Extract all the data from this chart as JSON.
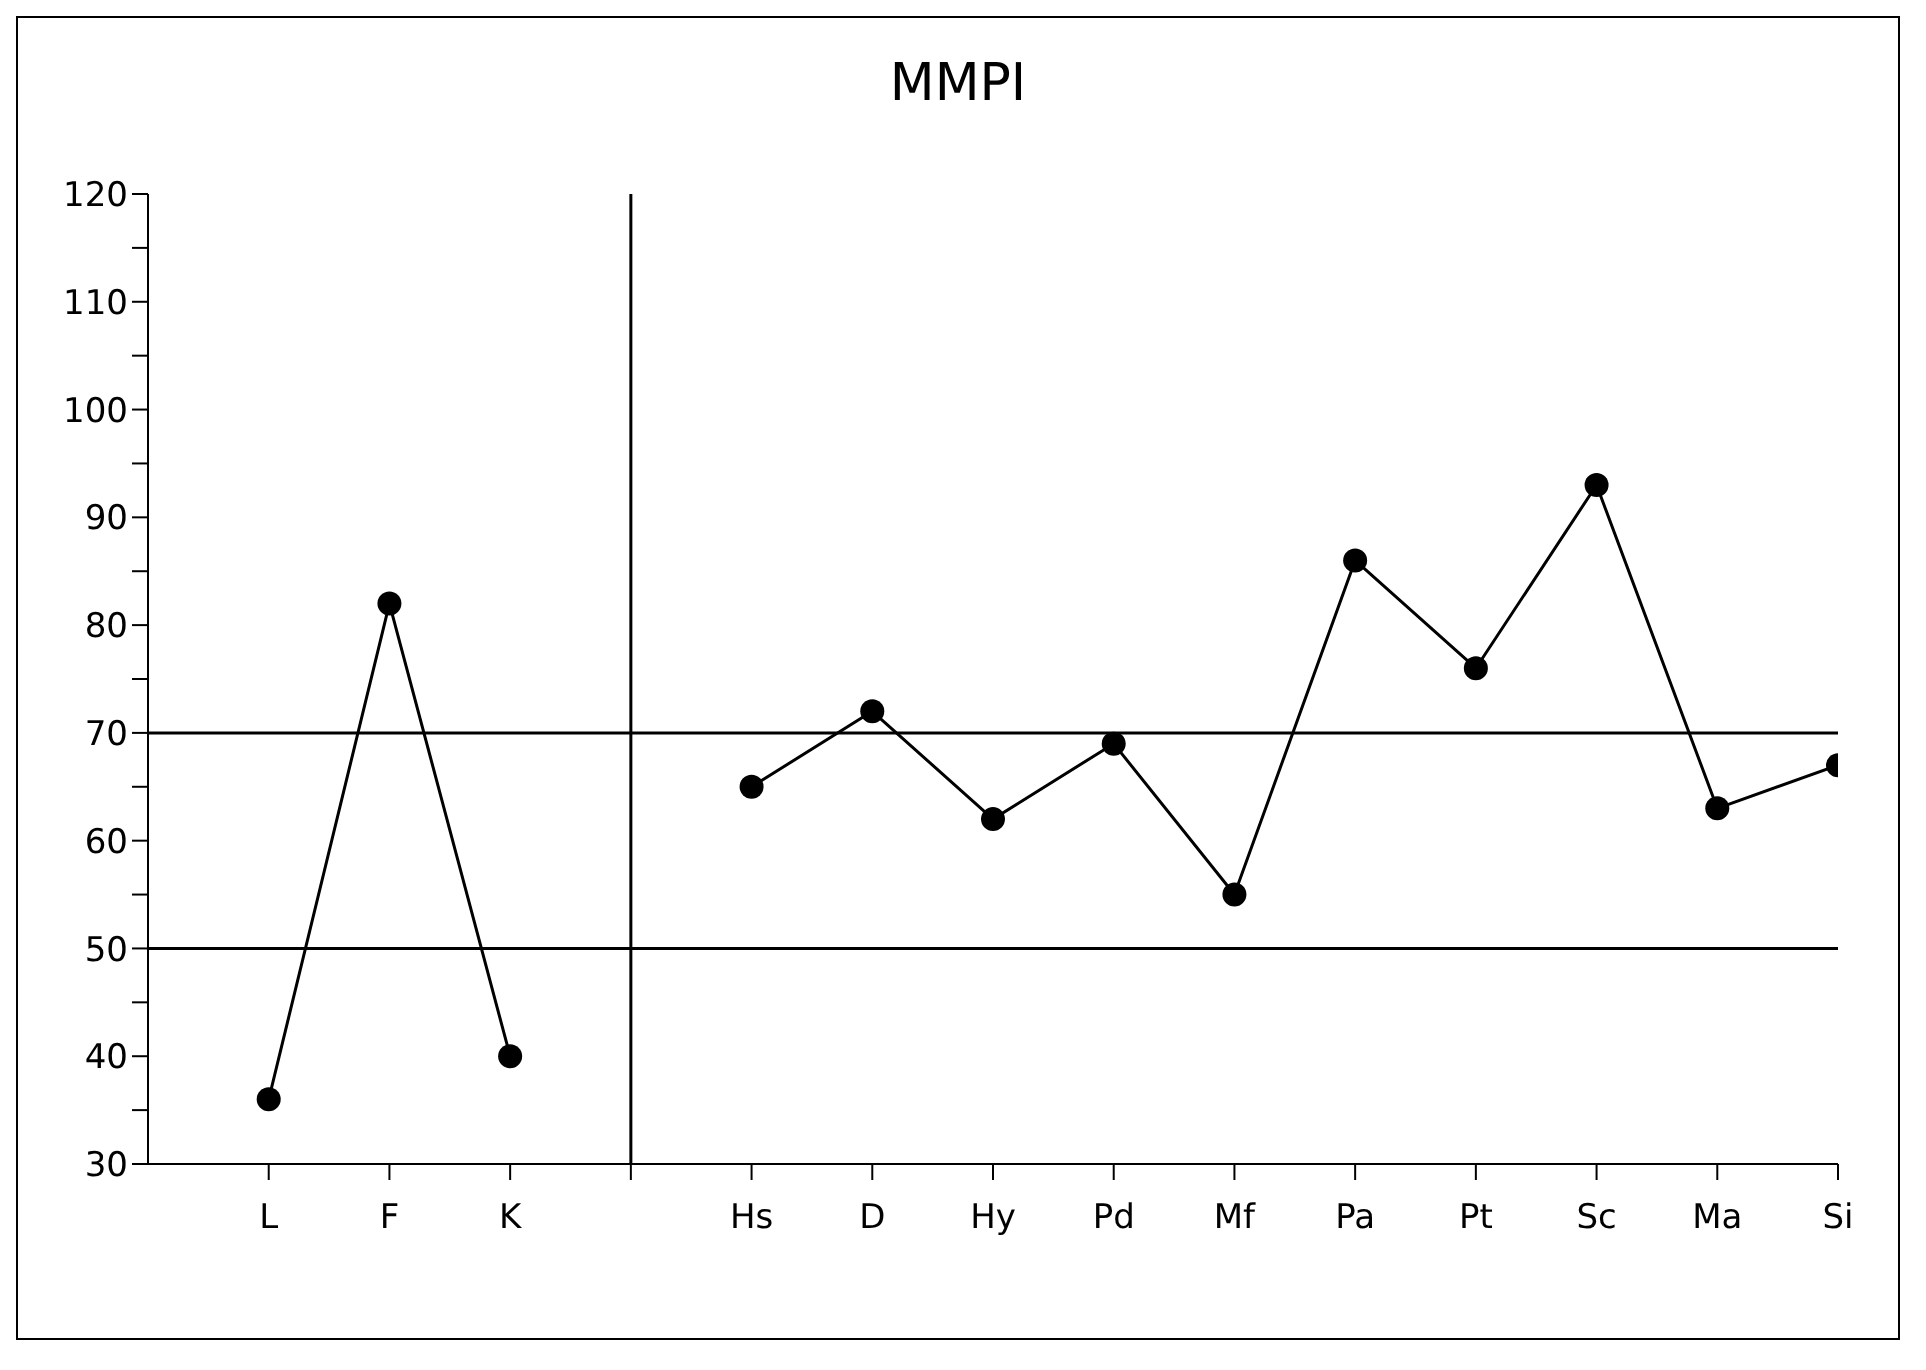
{
  "chart_data": {
    "type": "line",
    "title": "MMPI",
    "categories": [
      "L",
      "F",
      "K",
      null,
      "Hs",
      "D",
      "Hy",
      "Pd",
      "Mf",
      "Pa",
      "Pt",
      "Sc",
      "Ma",
      "Si"
    ],
    "ylim": [
      30,
      120
    ],
    "yticks": [
      30,
      {
        "value": 35,
        "label": null
      },
      40,
      {
        "value": 45,
        "label": null
      },
      50,
      {
        "value": 55,
        "label": null
      },
      60,
      {
        "value": 65,
        "label": null
      },
      70,
      {
        "value": 75,
        "label": null
      },
      80,
      {
        "value": 85,
        "label": null
      },
      90,
      {
        "value": 95,
        "label": null
      },
      100,
      {
        "value": 105,
        "label": null
      },
      110,
      {
        "value": 115,
        "label": null
      },
      120
    ],
    "series": [
      {
        "color": "#000000",
        "values": [
          36,
          82,
          40,
          null,
          65,
          72,
          62,
          69,
          55,
          86,
          76,
          93,
          63,
          67
        ]
      }
    ],
    "ref_lines": [
      {
        "axis": "y",
        "value": 70,
        "color": "#000000"
      },
      {
        "axis": "y",
        "value": 50,
        "color": "#000000"
      },
      {
        "axis": "x",
        "value": null,
        "color": "#000000"
      }
    ],
    "marker": "circle",
    "line_style": "solid"
  }
}
